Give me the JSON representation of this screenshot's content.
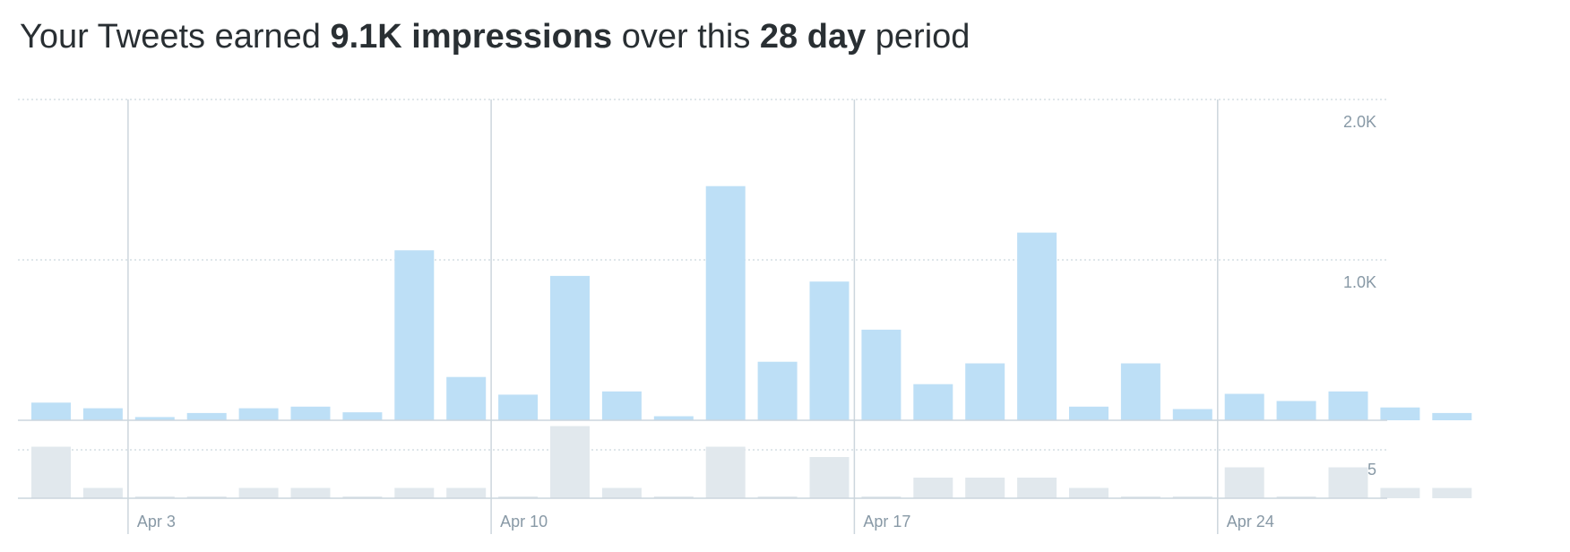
{
  "headline": {
    "prefix": "Your Tweets earned ",
    "impressions": "9.1K impressions",
    "middle": " over this ",
    "period": "28 day",
    "suffix": " period"
  },
  "colors": {
    "impressions_bar": "#bddff6",
    "secondary_bar": "#e1e8ed",
    "gridline": "#ccd6dd",
    "axis": "#ccd6dd",
    "label": "#8899a6",
    "text": "#292f33"
  },
  "chart_data": [
    {
      "type": "bar",
      "title": "",
      "x": [
        "Apr 1",
        "Apr 2",
        "Apr 3",
        "Apr 4",
        "Apr 5",
        "Apr 6",
        "Apr 7",
        "Apr 8",
        "Apr 9",
        "Apr 10",
        "Apr 11",
        "Apr 12",
        "Apr 13",
        "Apr 14",
        "Apr 15",
        "Apr 16",
        "Apr 17",
        "Apr 18",
        "Apr 19",
        "Apr 20",
        "Apr 21",
        "Apr 22",
        "Apr 23",
        "Apr 24",
        "Apr 25",
        "Apr 26",
        "Apr 27",
        "Apr 28"
      ],
      "values": [
        110,
        75,
        20,
        45,
        75,
        85,
        50,
        1060,
        270,
        160,
        900,
        180,
        25,
        1460,
        365,
        865,
        565,
        225,
        355,
        1170,
        85,
        355,
        70,
        165,
        120,
        180,
        80,
        45
      ],
      "ylim": [
        0,
        2000
      ],
      "y_ticks": [
        "1.0K",
        "2.0K"
      ],
      "x_tick_labels": [
        "Apr 3",
        "Apr 10",
        "Apr 17",
        "Apr 24"
      ],
      "grid": true
    },
    {
      "type": "bar",
      "title": "",
      "x": [
        "Apr 1",
        "Apr 2",
        "Apr 3",
        "Apr 4",
        "Apr 5",
        "Apr 6",
        "Apr 7",
        "Apr 8",
        "Apr 9",
        "Apr 10",
        "Apr 11",
        "Apr 12",
        "Apr 13",
        "Apr 14",
        "Apr 15",
        "Apr 16",
        "Apr 17",
        "Apr 18",
        "Apr 19",
        "Apr 20",
        "Apr 21",
        "Apr 22",
        "Apr 23",
        "Apr 24",
        "Apr 25",
        "Apr 26",
        "Apr 27",
        "Apr 28"
      ],
      "values": [
        5,
        1,
        0,
        0,
        1,
        1,
        0,
        1,
        1,
        0,
        7,
        1,
        0,
        5,
        0,
        4,
        0,
        2,
        2,
        2,
        1,
        0,
        0,
        3,
        0,
        3,
        1,
        1
      ],
      "ylim": [
        0,
        8
      ],
      "y_ticks": [
        "5"
      ],
      "grid": true
    }
  ]
}
